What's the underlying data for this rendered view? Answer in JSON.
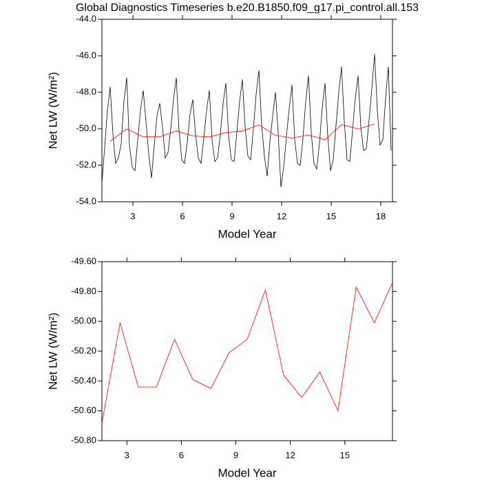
{
  "chart_data": [
    {
      "type": "line",
      "title": "Global Diagnostics Timeseries b.e20.B1850.f09_g17.pi_control.all.153",
      "xlabel": "Model Year",
      "ylabel": "Net LW (W/m²)",
      "xlim": [
        1.125,
        18.708
      ],
      "xticks": [
        3,
        6,
        9,
        12,
        15,
        18
      ],
      "ylim": [
        -54,
        -44
      ],
      "yticks": [
        {
          "value": -54,
          "label": "-54.0"
        },
        {
          "value": -52,
          "label": "-52.0"
        },
        {
          "value": -50,
          "label": "-50.0"
        },
        {
          "value": -48,
          "label": "-48.0"
        },
        {
          "value": -46,
          "label": "-46.0"
        },
        {
          "value": -44,
          "label": "-44.0"
        }
      ],
      "series": [
        {
          "color": "#000000",
          "x": [
            1.125,
            1.292,
            1.458,
            1.625,
            1.792,
            1.958,
            2.125,
            2.292,
            2.458,
            2.625,
            2.792,
            2.958,
            3.125,
            3.292,
            3.458,
            3.625,
            3.792,
            3.958,
            4.125,
            4.292,
            4.458,
            4.625,
            4.792,
            4.958,
            5.125,
            5.292,
            5.458,
            5.625,
            5.792,
            5.958,
            6.125,
            6.292,
            6.458,
            6.625,
            6.792,
            6.958,
            7.125,
            7.292,
            7.458,
            7.625,
            7.792,
            7.958,
            8.125,
            8.292,
            8.458,
            8.625,
            8.792,
            8.958,
            9.125,
            9.292,
            9.458,
            9.625,
            9.792,
            9.958,
            10.125,
            10.292,
            10.458,
            10.625,
            10.792,
            10.958,
            11.125,
            11.292,
            11.458,
            11.625,
            11.792,
            11.958,
            12.125,
            12.292,
            12.458,
            12.625,
            12.792,
            12.958,
            13.125,
            13.292,
            13.458,
            13.625,
            13.792,
            13.958,
            14.125,
            14.292,
            14.458,
            14.625,
            14.792,
            14.958,
            15.125,
            15.292,
            15.458,
            15.625,
            15.792,
            15.958,
            16.125,
            16.292,
            16.458,
            16.625,
            16.792,
            16.958,
            17.125,
            17.292,
            17.458,
            17.625,
            17.792,
            17.958,
            18.125,
            18.292,
            18.458,
            18.625
          ],
          "values": [
            -53.0,
            -51.0,
            -49.0,
            -47.7,
            -50.3,
            -51.9,
            -51.6,
            -50.8,
            -48.5,
            -47.2,
            -50.9,
            -52.1,
            -52.3,
            -50.6,
            -49.0,
            -47.9,
            -49.6,
            -51.4,
            -52.7,
            -50.9,
            -49.3,
            -48.6,
            -49.9,
            -51.6,
            -51.3,
            -50.0,
            -48.4,
            -47.2,
            -50.1,
            -51.7,
            -51.9,
            -50.7,
            -49.2,
            -48.4,
            -50.3,
            -51.6,
            -51.9,
            -50.5,
            -49.0,
            -47.9,
            -50.6,
            -51.8,
            -51.6,
            -50.3,
            -48.6,
            -47.5,
            -50.4,
            -51.7,
            -51.8,
            -50.2,
            -48.5,
            -47.3,
            -49.9,
            -51.5,
            -51.7,
            -50.0,
            -48.1,
            -46.8,
            -49.8,
            -51.5,
            -52.6,
            -50.7,
            -49.3,
            -48.0,
            -50.2,
            -53.2,
            -52.1,
            -50.4,
            -48.9,
            -47.6,
            -50.6,
            -51.9,
            -52.0,
            -50.5,
            -48.5,
            -47.1,
            -50.2,
            -51.9,
            -52.2,
            -50.8,
            -48.8,
            -47.5,
            -50.4,
            -52.3,
            -51.7,
            -49.8,
            -48.0,
            -46.6,
            -49.6,
            -51.7,
            -51.8,
            -50.1,
            -48.3,
            -47.1,
            -49.9,
            -51.2,
            -51.1,
            -49.5,
            -47.8,
            -45.9,
            -49.0,
            -50.9,
            -50.6,
            -48.3,
            -46.6,
            -51.2
          ]
        },
        {
          "color": "#ff0000",
          "x": [
            1.625,
            2.625,
            3.625,
            4.625,
            5.625,
            6.625,
            7.625,
            8.625,
            9.625,
            10.625,
            11.625,
            12.625,
            13.625,
            14.625,
            15.625,
            16.625,
            17.625
          ],
          "values": [
            -50.68,
            -50.01,
            -50.44,
            -50.44,
            -50.12,
            -50.39,
            -50.45,
            -50.21,
            -50.12,
            -49.79,
            -50.36,
            -50.51,
            -50.34,
            -50.6,
            -49.77,
            -50.01,
            -49.74
          ]
        }
      ]
    },
    {
      "type": "line",
      "xlabel": "Model Year",
      "ylabel": "Net LW (W/m²)",
      "xlim": [
        1.625,
        17.625
      ],
      "xticks": [
        3,
        6,
        9,
        12,
        15
      ],
      "ylim": [
        -50.8,
        -49.6
      ],
      "yticks": [
        {
          "value": -50.8,
          "label": "-50.80"
        },
        {
          "value": -50.6,
          "label": "-50.60"
        },
        {
          "value": -50.4,
          "label": "-50.40"
        },
        {
          "value": -50.2,
          "label": "-50.20"
        },
        {
          "value": -50.0,
          "label": "-50.00"
        },
        {
          "value": -49.8,
          "label": "-49.80"
        },
        {
          "value": -49.6,
          "label": "-49.60"
        }
      ],
      "series": [
        {
          "color": "#ff0000",
          "x": [
            1.625,
            2.625,
            3.625,
            4.625,
            5.625,
            6.625,
            7.625,
            8.625,
            9.625,
            10.625,
            11.625,
            12.625,
            13.625,
            14.625,
            15.625,
            16.625,
            17.625
          ],
          "values": [
            -50.68,
            -50.01,
            -50.44,
            -50.44,
            -50.12,
            -50.39,
            -50.45,
            -50.21,
            -50.12,
            -49.79,
            -50.36,
            -50.51,
            -50.34,
            -50.6,
            -49.77,
            -50.01,
            -49.74
          ]
        }
      ]
    }
  ]
}
